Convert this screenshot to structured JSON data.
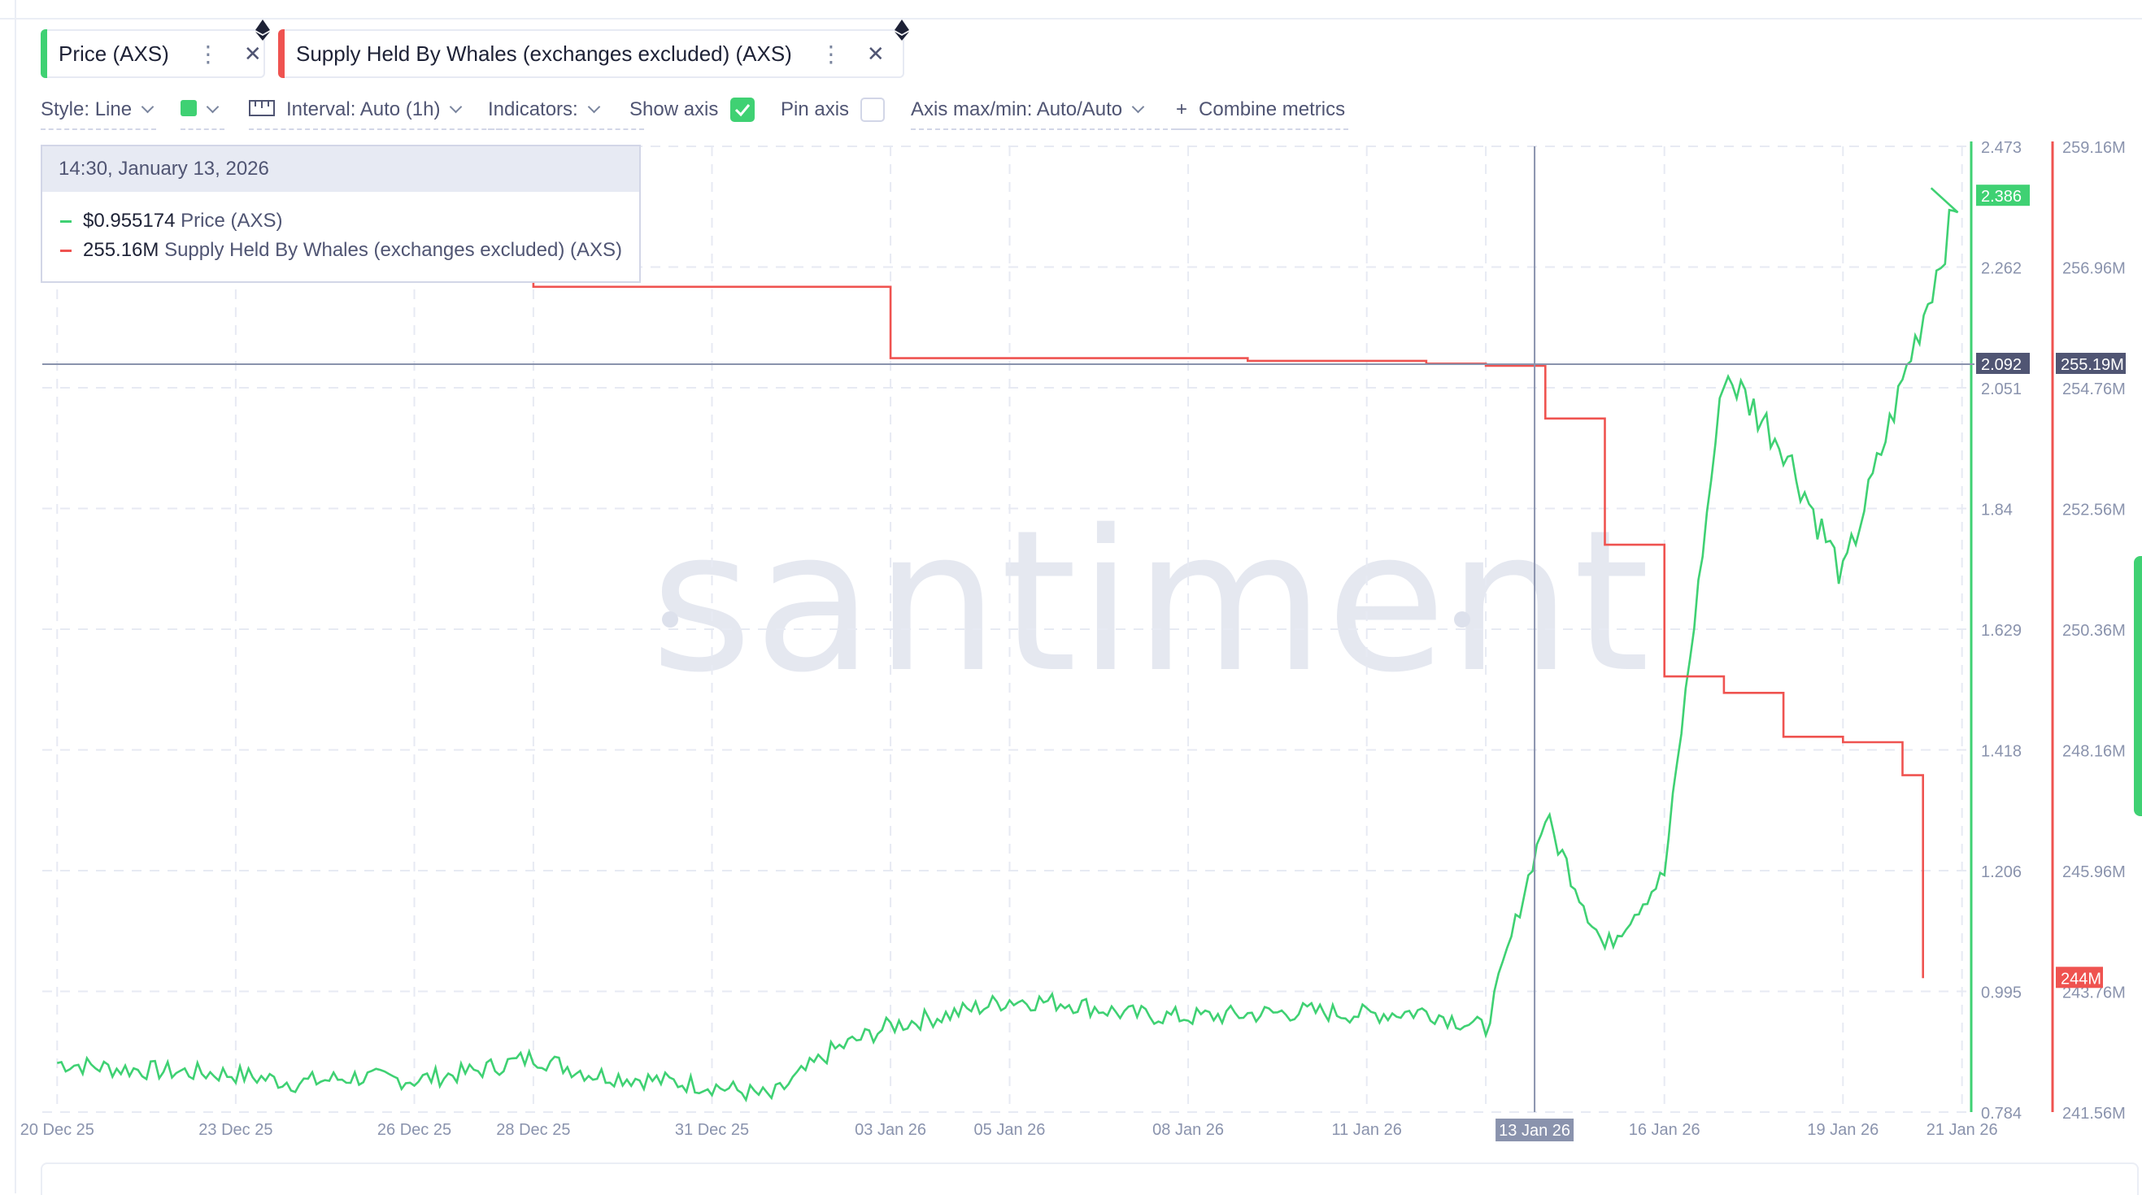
{
  "metrics": [
    {
      "label": "Price (AXS)",
      "color": "#3fd173"
    },
    {
      "label": "Supply Held By Whales (exchanges excluded) (AXS)",
      "color": "#ef5350"
    }
  ],
  "toolbar": {
    "style": "Style: Line",
    "interval": "Interval: Auto (1h)",
    "indicators": "Indicators:",
    "show_axis": "Show axis",
    "show_axis_checked": true,
    "pin_axis": "Pin axis",
    "pin_axis_checked": false,
    "axis_maxmin": "Axis max/min: Auto/Auto",
    "combine": "Combine metrics",
    "swatch_color": "#3fd173"
  },
  "tooltip": {
    "date": "14:30, January 13, 2026",
    "price_value": "$0.955174",
    "price_label": "Price (AXS)",
    "supply_value": "255.16M",
    "supply_label": "Supply Held By Whales (exchanges excluded) (AXS)"
  },
  "watermark": "santiment",
  "chart_data": {
    "type": "line",
    "x_ticks": [
      "20 Dec 25",
      "23 Dec 25",
      "26 Dec 25",
      "28 Dec 25",
      "31 Dec 25",
      "03 Jan 26",
      "05 Jan 26",
      "08 Jan 26",
      "11 Jan 26",
      "13 Jan 26",
      "16 Jan 26",
      "19 Jan 26",
      "21 Jan 26"
    ],
    "crosshair_x": "13 Jan 26",
    "price_axis": {
      "ticks": [
        "2.473",
        "2.262",
        "2.051",
        "1.84",
        "1.629",
        "1.418",
        "1.206",
        "0.995",
        "0.784"
      ],
      "min": 0.784,
      "max": 2.473,
      "current": "2.386",
      "crosshair": "2.092",
      "color": "#3fd173"
    },
    "supply_axis": {
      "ticks": [
        "259.16M",
        "256.96M",
        "254.76M",
        "252.56M",
        "250.36M",
        "248.16M",
        "245.96M",
        "243.76M",
        "241.56M"
      ],
      "min": 241.56,
      "max": 259.16,
      "current": "244M",
      "crosshair": "255.19M",
      "color": "#ef5350"
    },
    "grid": true,
    "series": [
      {
        "name": "Price (AXS)",
        "color": "#3fd173",
        "axis": "price",
        "points": [
          [
            "20 Dec 25",
            0.87
          ],
          [
            "21 Dec 25",
            0.86
          ],
          [
            "22 Dec 25",
            0.855
          ],
          [
            "23 Dec 25",
            0.85
          ],
          [
            "24 Dec 25",
            0.835
          ],
          [
            "25 Dec 25",
            0.845
          ],
          [
            "26 Dec 25",
            0.84
          ],
          [
            "27 Dec 25",
            0.855
          ],
          [
            "28 Dec 25",
            0.88
          ],
          [
            "29 Dec 25",
            0.85
          ],
          [
            "30 Dec 25",
            0.84
          ],
          [
            "31 Dec 25",
            0.83
          ],
          [
            "01 Jan 26",
            0.81
          ],
          [
            "02 Jan 26",
            0.89
          ],
          [
            "03 Jan 26",
            0.935
          ],
          [
            "04 Jan 26",
            0.955
          ],
          [
            "05 Jan 26",
            0.98
          ],
          [
            "06 Jan 26",
            0.975
          ],
          [
            "07 Jan 26",
            0.955
          ],
          [
            "08 Jan 26",
            0.95
          ],
          [
            "09 Jan 26",
            0.955
          ],
          [
            "10 Jan 26",
            0.96
          ],
          [
            "11 Jan 26",
            0.955
          ],
          [
            "12 Jan 26",
            0.96
          ],
          [
            "13 Jan 26",
            0.93
          ],
          [
            "14 Jan 26",
            1.3
          ],
          [
            "15 Jan 26",
            1.07
          ],
          [
            "16 Jan 26",
            1.2
          ],
          [
            "17 Jan 26",
            2.08
          ],
          [
            "18 Jan 26",
            1.95
          ],
          [
            "19 Jan 26",
            1.72
          ],
          [
            "20 Jan 26",
            2.06
          ],
          [
            "21 Jan 26",
            2.4
          ]
        ]
      },
      {
        "name": "Supply Held By Whales (exchanges excluded) (AXS)",
        "color": "#ef5350",
        "axis": "supply",
        "points": [
          [
            "20 Dec 25",
            257.1
          ],
          [
            "22 Dec 25",
            256.9
          ],
          [
            "25 Dec 25",
            256.8
          ],
          [
            "28 Dec 25",
            256.6
          ],
          [
            "31 Dec 25",
            256.6
          ],
          [
            "03 Jan 26",
            255.3
          ],
          [
            "06 Jan 26",
            255.3
          ],
          [
            "09 Jan 26",
            255.25
          ],
          [
            "12 Jan 26",
            255.2
          ],
          [
            "13 Jan 26",
            255.16
          ],
          [
            "14 Jan 26",
            254.2
          ],
          [
            "15 Jan 26",
            251.9
          ],
          [
            "16 Jan 26",
            249.5
          ],
          [
            "17 Jan 26",
            249.2
          ],
          [
            "18 Jan 26",
            248.4
          ],
          [
            "19 Jan 26",
            248.3
          ],
          [
            "20 Jan 26",
            247.7
          ],
          [
            "21 Jan 26",
            244.0
          ]
        ]
      }
    ]
  }
}
